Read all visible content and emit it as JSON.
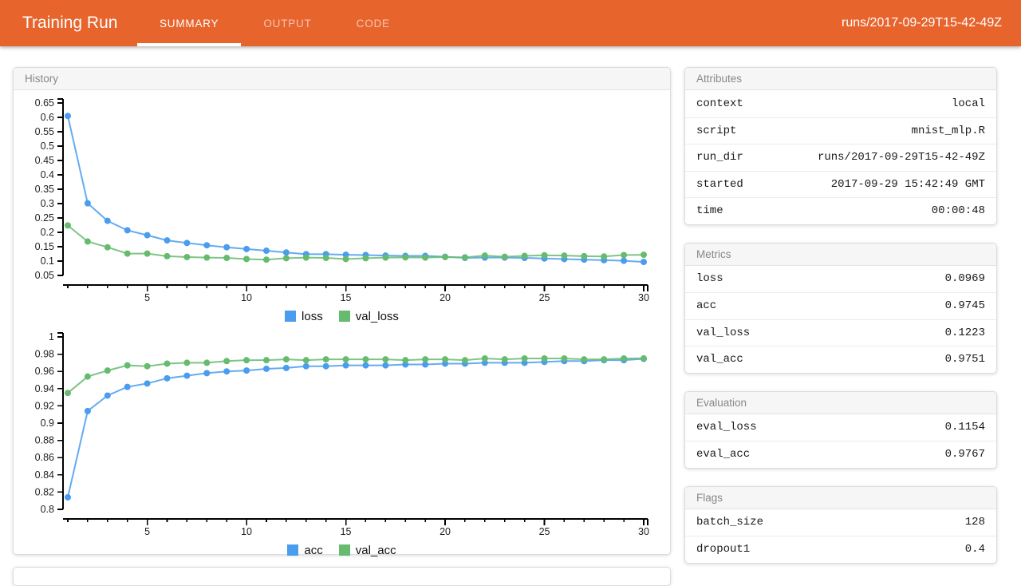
{
  "header": {
    "title": "Training Run",
    "tabs": [
      {
        "label": "SUMMARY",
        "active": true
      },
      {
        "label": "OUTPUT",
        "active": false
      },
      {
        "label": "CODE",
        "active": false
      }
    ],
    "run_label": "runs/2017-09-29T15-42-49Z"
  },
  "colors": {
    "accent": "#E7642D",
    "series_blue": "#4A9CEF",
    "series_green": "#66BB6E"
  },
  "history_panel": {
    "title": "History"
  },
  "panels": {
    "attributes": {
      "title": "Attributes",
      "rows": [
        {
          "key": "context",
          "value": "local"
        },
        {
          "key": "script",
          "value": "mnist_mlp.R"
        },
        {
          "key": "run_dir",
          "value": "runs/2017-09-29T15-42-49Z"
        },
        {
          "key": "started",
          "value": "2017-09-29 15:42:49 GMT"
        },
        {
          "key": "time",
          "value": "00:00:48"
        }
      ]
    },
    "metrics": {
      "title": "Metrics",
      "rows": [
        {
          "key": "loss",
          "value": "0.0969"
        },
        {
          "key": "acc",
          "value": "0.9745"
        },
        {
          "key": "val_loss",
          "value": "0.1223"
        },
        {
          "key": "val_acc",
          "value": "0.9751"
        }
      ]
    },
    "evaluation": {
      "title": "Evaluation",
      "rows": [
        {
          "key": "eval_loss",
          "value": "0.1154"
        },
        {
          "key": "eval_acc",
          "value": "0.9767"
        }
      ]
    },
    "flags": {
      "title": "Flags",
      "rows": [
        {
          "key": "batch_size",
          "value": "128"
        },
        {
          "key": "dropout1",
          "value": "0.4"
        }
      ]
    }
  },
  "chart_data": [
    {
      "type": "line",
      "title": "loss history",
      "xlabel": "",
      "ylabel": "",
      "x": [
        1,
        2,
        3,
        4,
        5,
        6,
        7,
        8,
        9,
        10,
        11,
        12,
        13,
        14,
        15,
        16,
        17,
        18,
        19,
        20,
        21,
        22,
        23,
        24,
        25,
        26,
        27,
        28,
        29,
        30
      ],
      "x_major_ticks": [
        5,
        10,
        15,
        20,
        25,
        30
      ],
      "ylim": [
        0.05,
        0.65
      ],
      "y_step": 0.05,
      "grid": false,
      "legend_position": "bottom",
      "series": [
        {
          "name": "loss",
          "color": "#4A9CEF",
          "values": [
            0.605,
            0.301,
            0.24,
            0.207,
            0.19,
            0.172,
            0.163,
            0.155,
            0.148,
            0.142,
            0.136,
            0.13,
            0.124,
            0.124,
            0.122,
            0.121,
            0.119,
            0.118,
            0.118,
            0.115,
            0.111,
            0.112,
            0.112,
            0.111,
            0.109,
            0.107,
            0.105,
            0.103,
            0.101,
            0.097
          ]
        },
        {
          "name": "val_loss",
          "color": "#66BB6E",
          "values": [
            0.224,
            0.168,
            0.148,
            0.126,
            0.126,
            0.117,
            0.114,
            0.112,
            0.111,
            0.107,
            0.105,
            0.11,
            0.112,
            0.111,
            0.107,
            0.11,
            0.112,
            0.113,
            0.112,
            0.114,
            0.113,
            0.119,
            0.115,
            0.118,
            0.12,
            0.119,
            0.117,
            0.116,
            0.121,
            0.122
          ]
        }
      ]
    },
    {
      "type": "line",
      "title": "accuracy history",
      "xlabel": "",
      "ylabel": "",
      "x": [
        1,
        2,
        3,
        4,
        5,
        6,
        7,
        8,
        9,
        10,
        11,
        12,
        13,
        14,
        15,
        16,
        17,
        18,
        19,
        20,
        21,
        22,
        23,
        24,
        25,
        26,
        27,
        28,
        29,
        30
      ],
      "x_major_ticks": [
        5,
        10,
        15,
        20,
        25,
        30
      ],
      "ylim": [
        0.8,
        1.0
      ],
      "y_step": 0.02,
      "grid": false,
      "legend_position": "bottom",
      "series": [
        {
          "name": "acc",
          "color": "#4A9CEF",
          "values": [
            0.814,
            0.914,
            0.932,
            0.942,
            0.946,
            0.952,
            0.955,
            0.958,
            0.96,
            0.961,
            0.963,
            0.964,
            0.966,
            0.966,
            0.967,
            0.967,
            0.967,
            0.968,
            0.968,
            0.969,
            0.969,
            0.97,
            0.97,
            0.97,
            0.971,
            0.972,
            0.972,
            0.973,
            0.973,
            0.9745
          ]
        },
        {
          "name": "val_acc",
          "color": "#66BB6E",
          "values": [
            0.935,
            0.954,
            0.961,
            0.967,
            0.966,
            0.969,
            0.97,
            0.97,
            0.972,
            0.973,
            0.973,
            0.974,
            0.973,
            0.974,
            0.974,
            0.974,
            0.974,
            0.973,
            0.974,
            0.974,
            0.973,
            0.975,
            0.974,
            0.975,
            0.975,
            0.975,
            0.974,
            0.974,
            0.975,
            0.9751
          ]
        }
      ]
    }
  ]
}
